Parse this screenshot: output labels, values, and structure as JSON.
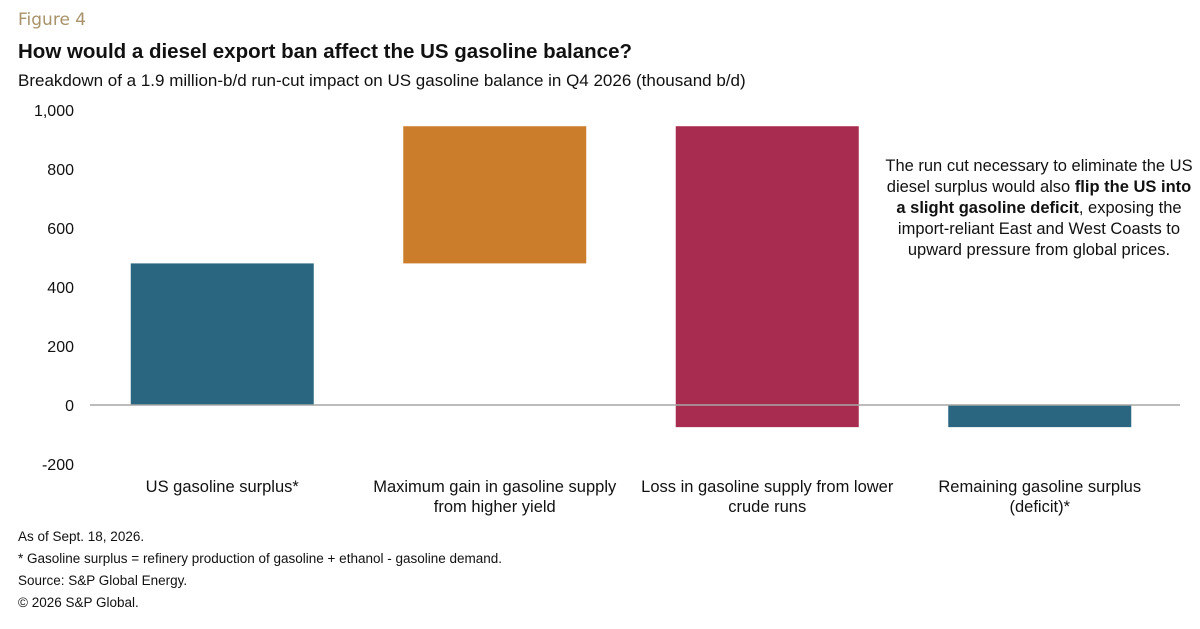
{
  "figure_label": "Figure 4",
  "annotation": {
    "part1": "The run cut necessary to eliminate the US diesel surplus would also ",
    "bold": "flip the US into a slight gasoline deficit",
    "part2": ", exposing the import-reliant East and West Coasts to upward pressure from global prices."
  },
  "footnotes": {
    "as_of": "As of Sept. 18, 2026.",
    "definition": "* Gasoline surplus = refinery production of gasoline + ethanol - gasoline demand.",
    "source": "Source: S&P Global Energy.",
    "copyright": "© 2026 S&P Global."
  },
  "chart_data": {
    "type": "bar",
    "subtype": "waterfall",
    "title": "How would a diesel export ban affect the US gasoline balance?",
    "subtitle": "Breakdown of a 1.9 million-b/d run-cut impact on US gasoline balance in Q4 2026 (thousand b/d)",
    "ylim": [
      -200,
      1000
    ],
    "yticks": [
      -200,
      0,
      200,
      400,
      600,
      800,
      1000
    ],
    "ytick_labels": [
      "-200",
      "0",
      "200",
      "400",
      "600",
      "800",
      "1,000"
    ],
    "grid": false,
    "categories": [
      [
        "US gasoline surplus*"
      ],
      [
        "Maximum gain in gasoline supply",
        "from higher yield"
      ],
      [
        "Loss in gasoline supply from lower",
        "crude runs"
      ],
      [
        "Remaining gasoline surplus",
        "(deficit)*"
      ]
    ],
    "bars": [
      {
        "start": 0,
        "end": 480,
        "color": "#2b6681"
      },
      {
        "start": 480,
        "end": 945,
        "color": "#cc7d2c"
      },
      {
        "start": 945,
        "end": -75,
        "color": "#a82c4f"
      },
      {
        "start": 0,
        "end": -75,
        "color": "#2b6681"
      }
    ]
  }
}
